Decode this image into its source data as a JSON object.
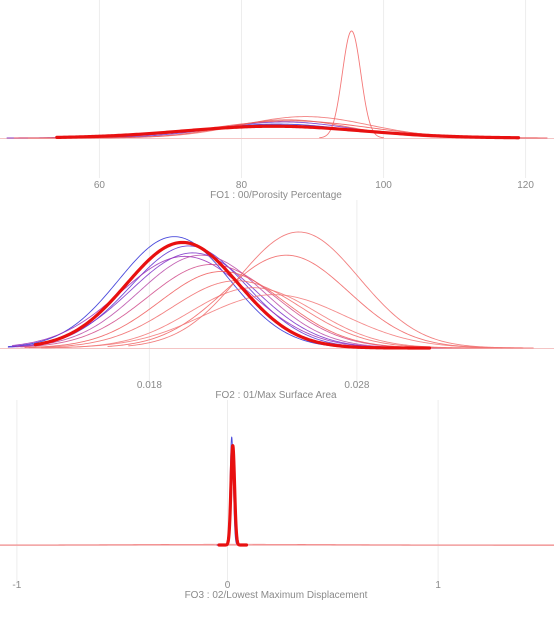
{
  "chart_data": [
    {
      "type": "line",
      "title": "FO1 : 00/Porosity Percentage",
      "xlabel": "FO1 : 00/Porosity Percentage",
      "ylabel": "",
      "xlim": [
        46,
        124
      ],
      "xticks": [
        60,
        80,
        100,
        120
      ],
      "grid": true,
      "series": [
        {
          "color": "#e81010",
          "weight": "bold",
          "curve": {
            "mu": 84.5,
            "sigma": 12.5,
            "amp": 0.11,
            "from": 54,
            "to": 119
          }
        },
        {
          "color": "#2b2bd6",
          "weight": "thin",
          "curve": {
            "mu": 85,
            "sigma": 10.5,
            "amp": 0.13,
            "from": 47,
            "to": 122
          }
        },
        {
          "color": "#6a2ccf",
          "weight": "thin",
          "curve": {
            "mu": 86,
            "sigma": 9.5,
            "amp": 0.15,
            "from": 48,
            "to": 122
          }
        },
        {
          "color": "#9a2fb8",
          "weight": "thin",
          "curve": {
            "mu": 84,
            "sigma": 11.5,
            "amp": 0.12,
            "from": 47,
            "to": 123
          }
        },
        {
          "color": "#f05050",
          "weight": "thin",
          "curve": {
            "mu": 87,
            "sigma": 11,
            "amp": 0.16,
            "from": 48,
            "to": 123
          }
        },
        {
          "color": "#f06a6a",
          "weight": "thin",
          "curve": {
            "mu": 89,
            "sigma": 9,
            "amp": 0.2,
            "from": 50,
            "to": 123
          }
        },
        {
          "color": "#e85a5a",
          "weight": "thin",
          "curve": {
            "mu": 86.5,
            "sigma": 8.5,
            "amp": 0.17,
            "from": 50,
            "to": 122
          }
        },
        {
          "color": "#f26060",
          "weight": "thin",
          "curve": {
            "mu": 95.5,
            "sigma": 1.3,
            "amp": 1.0,
            "from": 91,
            "to": 100
          }
        }
      ]
    },
    {
      "type": "line",
      "title": "FO2 : 01/Max Surface Area",
      "xlabel": "FO2 : 01/Max Surface Area",
      "ylabel": "",
      "xlim": [
        0.0108,
        0.0375
      ],
      "xticks": [
        0.018,
        0.028
      ],
      "xtick_labels": [
        "0.018",
        "0.028"
      ],
      "grid": true,
      "series": [
        {
          "color": "#e81010",
          "weight": "bold",
          "curve": {
            "mu": 0.0196,
            "sigma": 0.0027,
            "amp": 0.91,
            "from": 0.0125,
            "to": 0.0315
          }
        },
        {
          "color": "#2b2bd6",
          "weight": "thin",
          "curve": {
            "mu": 0.0192,
            "sigma": 0.0027,
            "amp": 0.96,
            "from": 0.0112,
            "to": 0.0318
          }
        },
        {
          "color": "#5a2fd0",
          "weight": "thin",
          "curve": {
            "mu": 0.0199,
            "sigma": 0.0028,
            "amp": 0.88,
            "from": 0.0112,
            "to": 0.033
          }
        },
        {
          "color": "#7a2ec8",
          "weight": "thin",
          "curve": {
            "mu": 0.0201,
            "sigma": 0.003,
            "amp": 0.82,
            "from": 0.0114,
            "to": 0.0335
          }
        },
        {
          "color": "#9a2fb8",
          "weight": "thin",
          "curve": {
            "mu": 0.0197,
            "sigma": 0.0031,
            "amp": 0.79,
            "from": 0.0114,
            "to": 0.033
          }
        },
        {
          "color": "#b84aa8",
          "weight": "thin",
          "curve": {
            "mu": 0.0205,
            "sigma": 0.003,
            "amp": 0.8,
            "from": 0.0116,
            "to": 0.0335
          }
        },
        {
          "color": "#d04a8a",
          "weight": "thin",
          "curve": {
            "mu": 0.021,
            "sigma": 0.0031,
            "amp": 0.72,
            "from": 0.0118,
            "to": 0.034
          }
        },
        {
          "color": "#ee5a5a",
          "weight": "thin",
          "curve": {
            "mu": 0.0215,
            "sigma": 0.003,
            "amp": 0.66,
            "from": 0.012,
            "to": 0.0345
          }
        },
        {
          "color": "#f06a6a",
          "weight": "thin",
          "curve": {
            "mu": 0.0222,
            "sigma": 0.0031,
            "amp": 0.58,
            "from": 0.0122,
            "to": 0.035
          }
        },
        {
          "color": "#f27474",
          "weight": "thin",
          "curve": {
            "mu": 0.023,
            "sigma": 0.003,
            "amp": 0.52,
            "from": 0.0128,
            "to": 0.0355
          }
        },
        {
          "color": "#f06060",
          "weight": "thin",
          "curve": {
            "mu": 0.0246,
            "sigma": 0.003,
            "amp": 0.8,
            "from": 0.016,
            "to": 0.036
          }
        },
        {
          "color": "#f06a6a",
          "weight": "thin",
          "curve": {
            "mu": 0.0252,
            "sigma": 0.0029,
            "amp": 1.0,
            "from": 0.017,
            "to": 0.0365
          }
        },
        {
          "color": "#f27878",
          "weight": "thin",
          "curve": {
            "mu": 0.024,
            "sigma": 0.0034,
            "amp": 0.46,
            "from": 0.013,
            "to": 0.036
          }
        }
      ]
    },
    {
      "type": "line",
      "title": "FO3 : 02/Lowest Maximum Displacement",
      "xlabel": "FO3 : 02/Lowest Maximum Displacement",
      "ylabel": "",
      "xlim": [
        -1.08,
        1.55
      ],
      "xticks": [
        -1,
        0,
        1
      ],
      "xtick_labels": [
        "-1",
        "0",
        "1"
      ],
      "grid": true,
      "series": [
        {
          "color": "#2b2bd6",
          "weight": "thin",
          "curve": {
            "mu": 0.02,
            "sigma": 0.0075,
            "amp": 1.0,
            "from": -0.05,
            "to": 0.09
          }
        },
        {
          "color": "#e81010",
          "weight": "bold",
          "curve": {
            "mu": 0.025,
            "sigma": 0.0085,
            "amp": 0.92,
            "from": -0.04,
            "to": 0.09
          }
        },
        {
          "color": "#f07070",
          "weight": "thin",
          "curve": {
            "mu": 0.03,
            "sigma": 0.45,
            "amp": 0.006,
            "from": -1.08,
            "to": 1.55
          }
        }
      ]
    }
  ]
}
